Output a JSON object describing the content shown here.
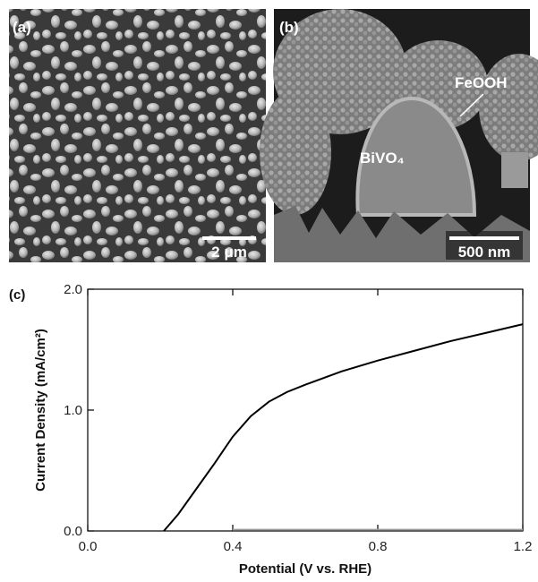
{
  "panels": [
    {
      "label": "(a)",
      "scale_bar": "2 μm"
    },
    {
      "label": "(b)",
      "scale_bar": "500 nm",
      "annotations": [
        "FeOOH",
        "BiVO₄"
      ]
    }
  ],
  "chart_data": {
    "type": "line",
    "panel_label": "(c)",
    "x_label": "Potential (V vs. RHE)",
    "y_label": "Current Density (mA/cm²)",
    "x": [
      0.21,
      0.25,
      0.3,
      0.35,
      0.4,
      0.45,
      0.5,
      0.55,
      0.6,
      0.7,
      0.8,
      0.9,
      1.0,
      1.1,
      1.2
    ],
    "series": [
      {
        "color": "#000000",
        "values": [
          0,
          0.14,
          0.35,
          0.56,
          0.78,
          0.95,
          1.07,
          1.15,
          1.21,
          1.32,
          1.41,
          1.49,
          1.57,
          1.64,
          1.71
        ]
      },
      {
        "color": "#9a9a9a",
        "values": [
          null,
          null,
          null,
          null,
          0.01,
          0.01,
          0.01,
          0.01,
          0.01,
          0.01,
          0.01,
          0.01,
          0.01,
          0.01,
          0.01
        ]
      }
    ],
    "xlim": [
      0,
      1.2
    ],
    "ylim": [
      0,
      2.0
    ],
    "xticks": [
      {
        "value": 0,
        "label": "0.0"
      },
      0.4,
      0.8,
      1.2
    ],
    "yticks": [
      {
        "value": 0,
        "label": "0.0"
      },
      {
        "value": 1,
        "label": "1.0"
      },
      {
        "value": 2,
        "label": "2.0"
      }
    ],
    "grid": false
  }
}
